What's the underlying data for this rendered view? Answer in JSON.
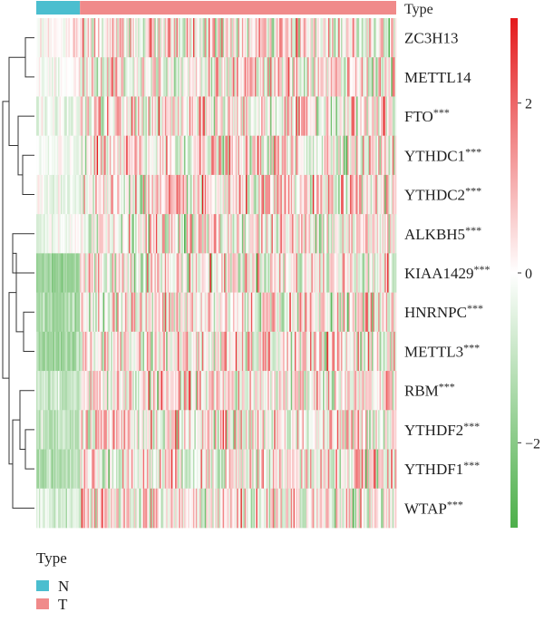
{
  "chart_data": {
    "type": "heatmap",
    "title": "",
    "annotation_label": "Type",
    "genes": [
      {
        "name": "ZC3H13",
        "sig": ""
      },
      {
        "name": "METTL14",
        "sig": ""
      },
      {
        "name": "FTO",
        "sig": "***"
      },
      {
        "name": "YTHDC1",
        "sig": "***"
      },
      {
        "name": "YTHDC2",
        "sig": "***"
      },
      {
        "name": "ALKBH5",
        "sig": "***"
      },
      {
        "name": "KIAA1429",
        "sig": "***"
      },
      {
        "name": "HNRNPC",
        "sig": "***"
      },
      {
        "name": "METTL3",
        "sig": "***"
      },
      {
        "name": "RBM",
        "sig": "***"
      },
      {
        "name": "YTHDF2",
        "sig": "***"
      },
      {
        "name": "YTHDF1",
        "sig": "***"
      },
      {
        "name": "WTAP",
        "sig": "***"
      }
    ],
    "groups": [
      {
        "name": "N",
        "color": "#4bbecf",
        "share": 0.12
      },
      {
        "name": "T",
        "color": "#f08a8a",
        "share": 0.88
      }
    ],
    "normal_mean_z": [
      0.05,
      0.0,
      -0.35,
      -0.3,
      -0.25,
      -0.3,
      -1.6,
      -1.5,
      -1.5,
      -1.0,
      -1.1,
      -1.2,
      -0.5
    ],
    "scale": {
      "min": -3,
      "max": 3,
      "ticks": [
        2,
        0,
        -2
      ],
      "tick_labels": [
        "2",
        "0",
        "−2"
      ],
      "low_color": "#4daf4a",
      "mid_color": "#ffffff",
      "high_color": "#e41a1c"
    },
    "legend": {
      "title": "Type",
      "entries": [
        {
          "label": "N",
          "color": "#4bbecf"
        },
        {
          "label": "T",
          "color": "#f08a8a"
        }
      ]
    }
  }
}
